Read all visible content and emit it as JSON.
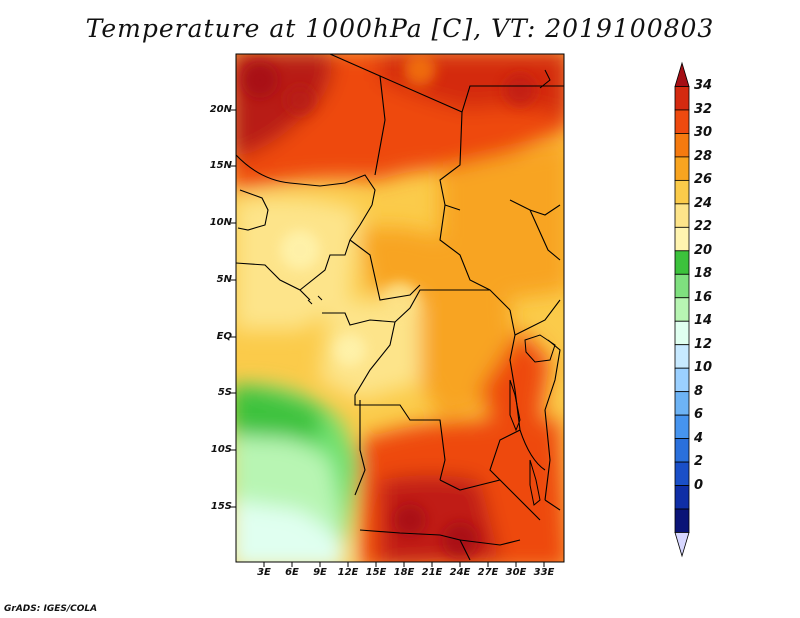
{
  "title": "Temperature at 1000hPa [C], VT: 2019100803",
  "credit": "GrADS: IGES/COLA",
  "map": {
    "lat_ticks": [
      "20N",
      "15N",
      "10N",
      "5N",
      "EQ",
      "5S",
      "10S",
      "15S"
    ],
    "lon_ticks": [
      "3E",
      "6E",
      "9E",
      "12E",
      "15E",
      "18E",
      "21E",
      "24E",
      "27E",
      "30E",
      "33E"
    ],
    "lon_range": [
      0,
      35
    ],
    "lat_range": [
      -19.5,
      24
    ]
  },
  "colorbar": {
    "labels": [
      "34",
      "32",
      "30",
      "28",
      "26",
      "24",
      "22",
      "20",
      "18",
      "16",
      "14",
      "12",
      "10",
      "8",
      "6",
      "4",
      "2",
      "0"
    ],
    "colors_top_to_bottom": [
      "#a50f15",
      "#d42a10",
      "#ee4a0f",
      "#f57a0f",
      "#f8a420",
      "#fbcb4a",
      "#fde48a",
      "#fff4b0",
      "#3cc23c",
      "#7fe07f",
      "#b8f5b3",
      "#e0fff0",
      "#c7e9ff",
      "#9bd0ff",
      "#6db3f5",
      "#4694ef",
      "#2a70dc",
      "#1a4fc8",
      "#0f2ea6",
      "#0a1477",
      "#d7d7ff"
    ]
  }
}
